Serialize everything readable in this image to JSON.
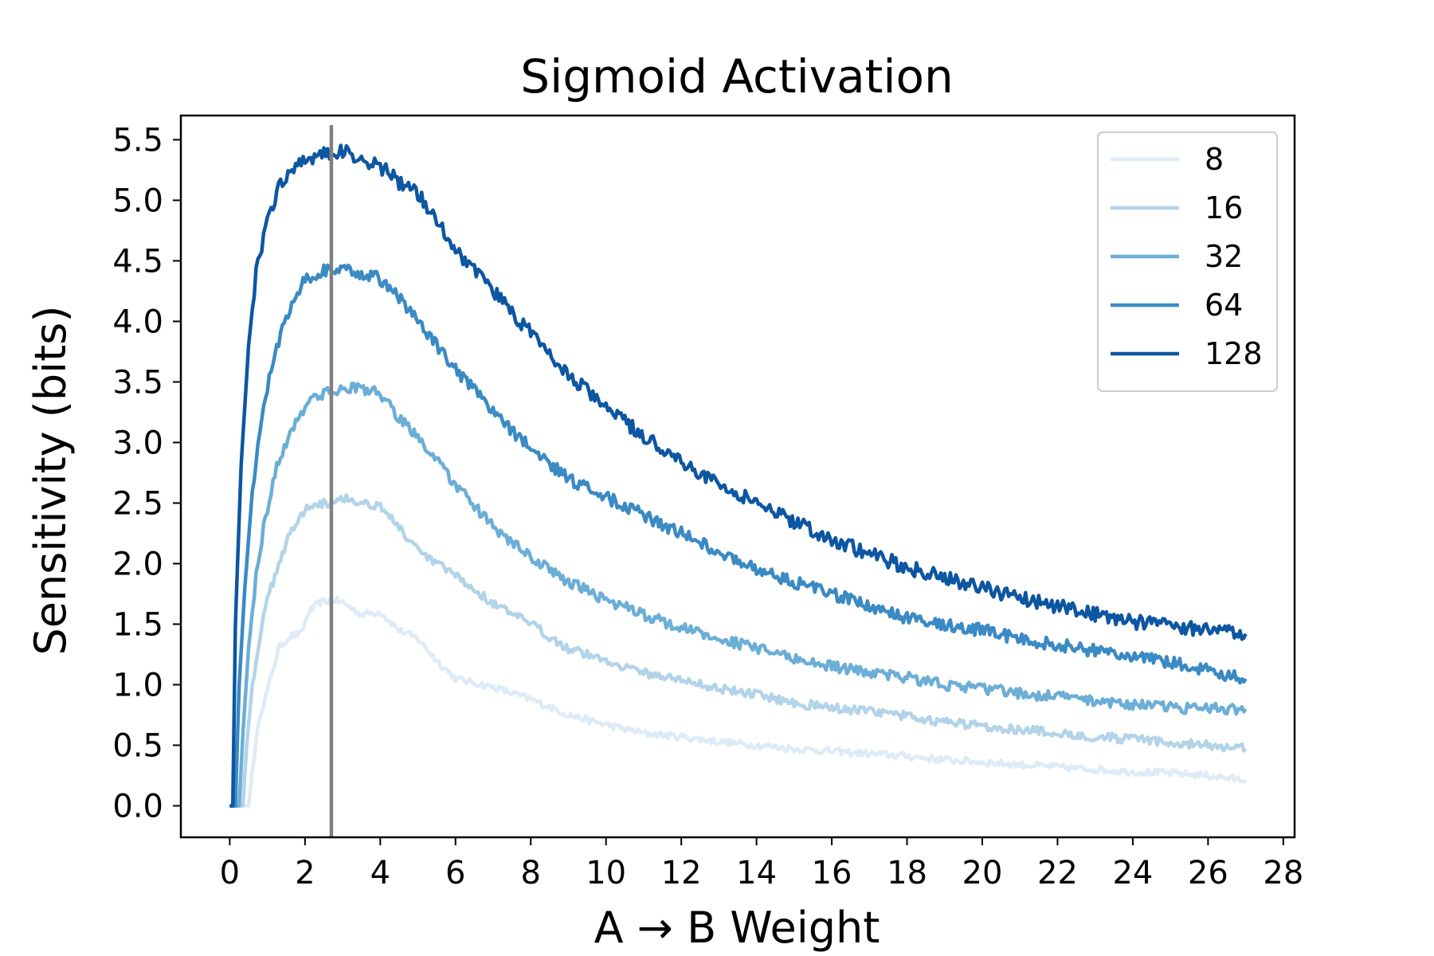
{
  "chart_data": {
    "type": "line",
    "title": "Sigmoid Activation",
    "xlabel": "A → B Weight",
    "ylabel": "Sensitivity (bits)",
    "xlim": [
      -1.3,
      28.3
    ],
    "ylim": [
      -0.26,
      5.7
    ],
    "xticks": [
      0,
      2,
      4,
      6,
      8,
      10,
      12,
      14,
      16,
      18,
      20,
      22,
      24,
      26,
      28
    ],
    "yticks": [
      0.0,
      0.5,
      1.0,
      1.5,
      2.0,
      2.5,
      3.0,
      3.5,
      4.0,
      4.5,
      5.0,
      5.5
    ],
    "ytick_labels": [
      "0.0",
      "0.5",
      "1.0",
      "1.5",
      "2.0",
      "2.5",
      "3.0",
      "3.5",
      "4.0",
      "4.5",
      "5.0",
      "5.5"
    ],
    "grid": false,
    "legend_position": "top-right",
    "reference_line": {
      "x": 2.7,
      "color": "#808080"
    },
    "series": [
      {
        "name": "8",
        "color": "#deebf7",
        "x": [
          0,
          0.5,
          0.6,
          0.8,
          1.0,
          1.3,
          1.6,
          1.9,
          2.1,
          2.4,
          2.8,
          3.0,
          3.5,
          4.0,
          4.5,
          5.0,
          5.5,
          6.0,
          7.0,
          8.0,
          9.0,
          10.0,
          11.0,
          12.0,
          13.0,
          14.0,
          15.0,
          16.0,
          17.0,
          18.0,
          19.0,
          20.0,
          21.0,
          22.0,
          23.0,
          24.0,
          25.0,
          26.0,
          27.0
        ],
        "y": [
          0,
          0,
          0.3,
          0.75,
          0.95,
          1.3,
          1.4,
          1.42,
          1.6,
          1.68,
          1.7,
          1.68,
          1.58,
          1.6,
          1.45,
          1.38,
          1.2,
          1.05,
          0.98,
          0.88,
          0.75,
          0.67,
          0.6,
          0.57,
          0.53,
          0.5,
          0.47,
          0.45,
          0.43,
          0.41,
          0.38,
          0.36,
          0.34,
          0.32,
          0.3,
          0.28,
          0.27,
          0.25,
          0.21
        ]
      },
      {
        "name": "16",
        "color": "#b3d3e8",
        "x": [
          0,
          0.35,
          0.45,
          0.6,
          0.8,
          1.0,
          1.3,
          1.6,
          1.9,
          2.2,
          2.6,
          3.0,
          3.5,
          4.0,
          4.5,
          5.0,
          5.5,
          6.0,
          7.0,
          8.0,
          9.0,
          10.0,
          11.0,
          12.0,
          13.0,
          14.0,
          15.0,
          16.0,
          17.0,
          18.0,
          19.0,
          20.0,
          21.0,
          22.0,
          23.0,
          24.0,
          25.0,
          26.0,
          27.0
        ],
        "y": [
          0,
          0,
          0.5,
          1.0,
          1.4,
          1.7,
          2.0,
          2.25,
          2.4,
          2.5,
          2.5,
          2.55,
          2.5,
          2.48,
          2.3,
          2.1,
          2.0,
          1.9,
          1.67,
          1.5,
          1.3,
          1.2,
          1.1,
          1.04,
          0.97,
          0.92,
          0.85,
          0.81,
          0.78,
          0.74,
          0.69,
          0.66,
          0.63,
          0.6,
          0.57,
          0.55,
          0.52,
          0.5,
          0.47
        ]
      },
      {
        "name": "32",
        "color": "#6baed6",
        "x": [
          0,
          0.25,
          0.35,
          0.5,
          0.7,
          0.9,
          1.2,
          1.5,
          1.8,
          2.1,
          2.5,
          3.0,
          3.5,
          4.0,
          4.5,
          5.0,
          5.5,
          6.0,
          7.0,
          8.0,
          9.0,
          10.0,
          11.0,
          12.0,
          13.0,
          14.0,
          15.0,
          16.0,
          17.0,
          18.0,
          19.0,
          20.0,
          21.0,
          22.0,
          23.0,
          24.0,
          25.0,
          26.0,
          27.0
        ],
        "y": [
          0,
          0,
          0.6,
          1.3,
          1.9,
          2.3,
          2.75,
          3.0,
          3.2,
          3.35,
          3.4,
          3.45,
          3.45,
          3.4,
          3.2,
          3.05,
          2.85,
          2.65,
          2.3,
          2.05,
          1.85,
          1.7,
          1.58,
          1.47,
          1.38,
          1.3,
          1.22,
          1.15,
          1.1,
          1.06,
          1.0,
          0.97,
          0.93,
          0.9,
          0.87,
          0.84,
          0.81,
          0.8,
          0.8
        ]
      },
      {
        "name": "64",
        "color": "#3a8ac4",
        "x": [
          0,
          0.15,
          0.25,
          0.4,
          0.6,
          0.8,
          1.1,
          1.4,
          1.7,
          2.0,
          2.5,
          3.0,
          3.5,
          4.0,
          4.5,
          5.0,
          5.5,
          6.0,
          7.0,
          8.0,
          9.0,
          10.0,
          11.0,
          12.0,
          13.0,
          14.0,
          15.0,
          16.0,
          17.0,
          18.0,
          19.0,
          20.0,
          21.0,
          22.0,
          23.0,
          24.0,
          25.0,
          26.0,
          27.0
        ],
        "y": [
          0,
          0,
          1.0,
          1.8,
          2.6,
          3.1,
          3.6,
          3.95,
          4.2,
          4.35,
          4.42,
          4.42,
          4.4,
          4.35,
          4.2,
          4.0,
          3.8,
          3.6,
          3.25,
          2.95,
          2.7,
          2.55,
          2.4,
          2.25,
          2.1,
          1.95,
          1.85,
          1.75,
          1.65,
          1.55,
          1.5,
          1.45,
          1.38,
          1.33,
          1.28,
          1.24,
          1.18,
          1.12,
          1.05
        ]
      },
      {
        "name": "128",
        "color": "#0d56a1",
        "x": [
          0,
          0.08,
          0.15,
          0.3,
          0.5,
          0.7,
          1.0,
          1.3,
          1.6,
          2.0,
          2.5,
          3.0,
          3.5,
          4.0,
          4.5,
          5.0,
          5.5,
          6.0,
          7.0,
          8.0,
          9.0,
          10.0,
          11.0,
          12.0,
          13.0,
          14.0,
          15.0,
          16.0,
          17.0,
          18.0,
          19.0,
          20.0,
          21.0,
          22.0,
          23.0,
          24.0,
          25.0,
          26.0,
          27.0
        ],
        "y": [
          0,
          0,
          1.5,
          2.8,
          3.8,
          4.4,
          4.85,
          5.1,
          5.25,
          5.35,
          5.38,
          5.4,
          5.35,
          5.28,
          5.15,
          5.05,
          4.85,
          4.6,
          4.25,
          3.9,
          3.55,
          3.3,
          3.05,
          2.85,
          2.65,
          2.5,
          2.35,
          2.2,
          2.08,
          1.97,
          1.88,
          1.8,
          1.72,
          1.65,
          1.58,
          1.52,
          1.48,
          1.45,
          1.42
        ]
      }
    ]
  }
}
